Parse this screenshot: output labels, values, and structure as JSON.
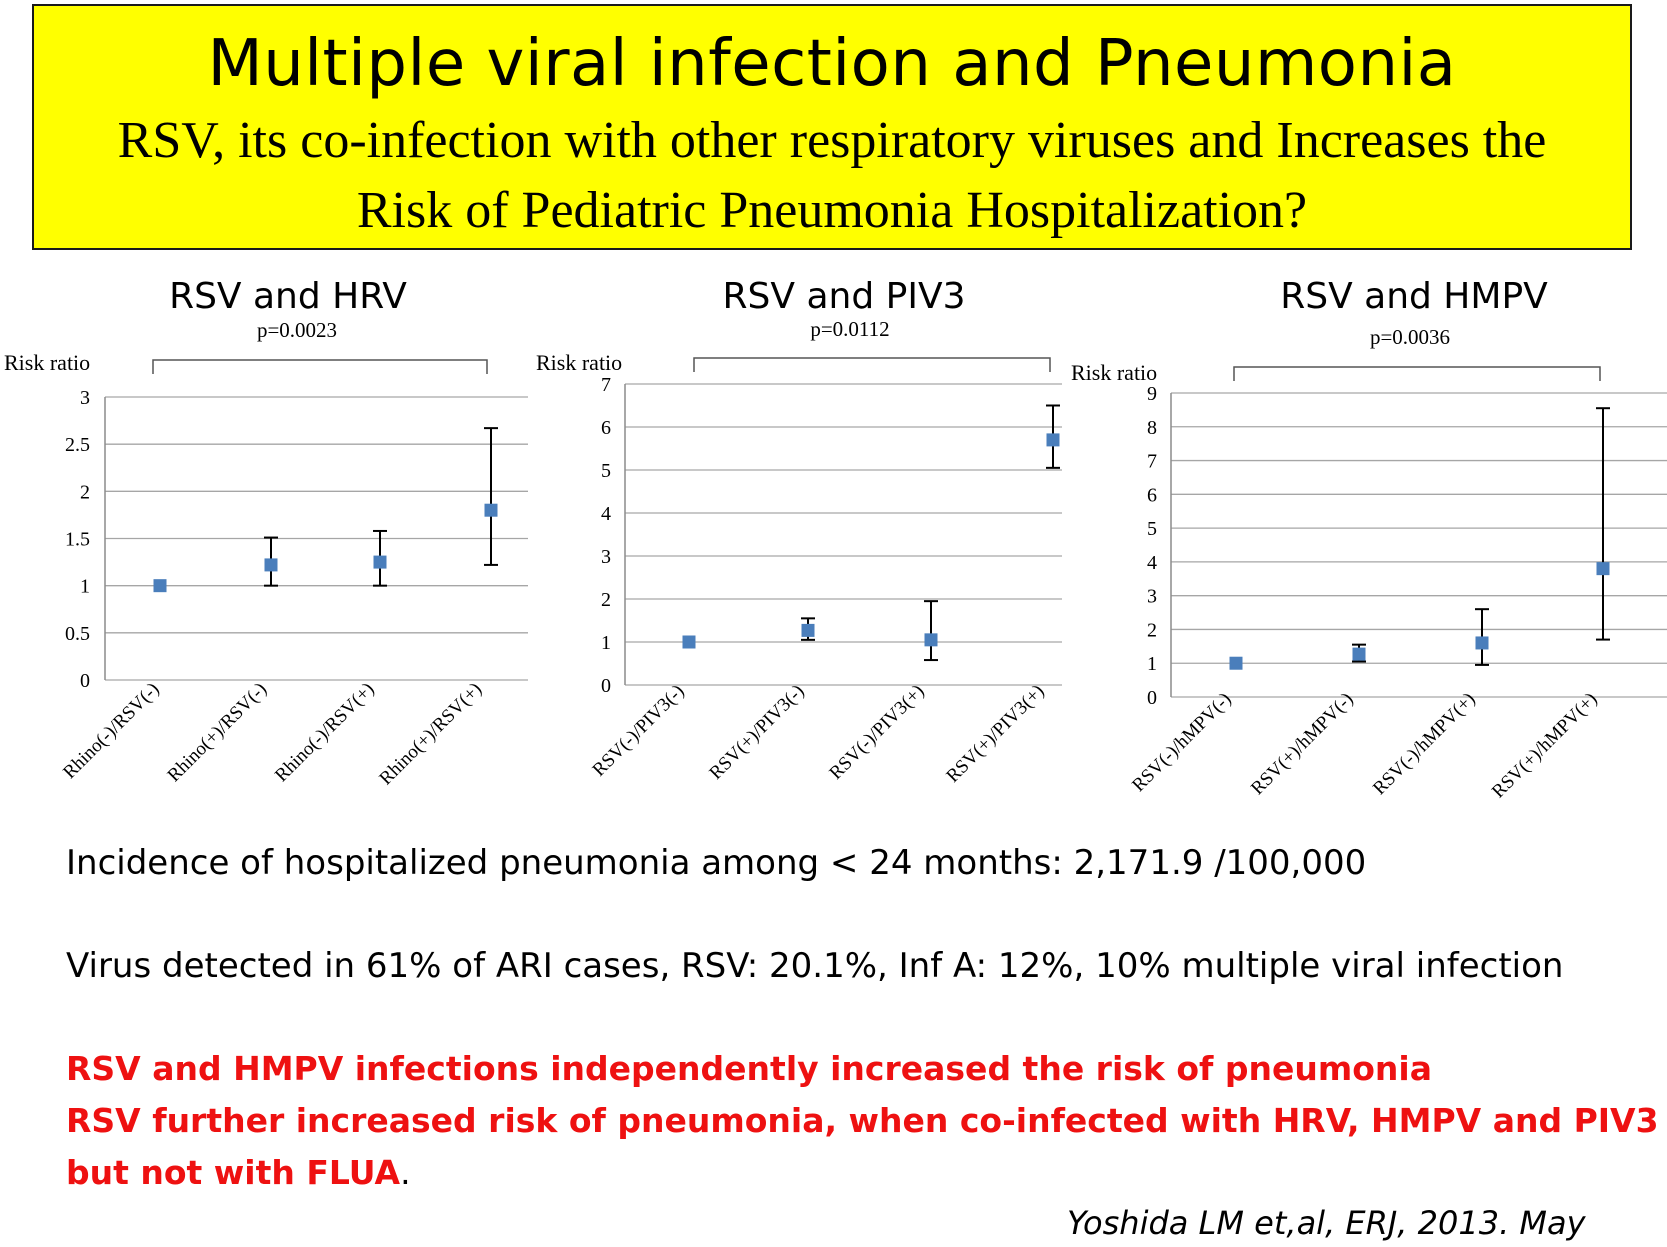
{
  "title": {
    "main": "Multiple viral infection and Pneumonia",
    "sub_line1": "RSV, its co-infection with other respiratory viruses and Increases the",
    "sub_line2": "Risk of Pediatric Pneumonia Hospitalization?"
  },
  "chart_data": [
    {
      "type": "scatter",
      "title": "RSV and HRV",
      "p_value": "p=0.0023",
      "ylabel": "Risk ratio",
      "categories": [
        "Rhino(-)/RSV(-)",
        "Rhino(+)/RSV(-)",
        "Rhino(-)/RSV(+)",
        "Rhino(+)/RSV(+)"
      ],
      "values": [
        1.0,
        1.22,
        1.25,
        1.8
      ],
      "error_low": [
        1.0,
        1.0,
        1.0,
        1.22
      ],
      "error_high": [
        1.0,
        1.51,
        1.58,
        2.67
      ],
      "ylim": [
        0,
        3
      ],
      "yticks": [
        "0",
        "0.5",
        "1",
        "1.5",
        "2",
        "2.5",
        "3"
      ],
      "grid": true,
      "marker_color": "#4a7ebb"
    },
    {
      "type": "scatter",
      "title": "RSV and PIV3",
      "p_value": "p=0.0112",
      "ylabel": "Risk ratio",
      "categories": [
        "RSV(-)/PIV3(-)",
        "RSV(+)/PIV3(-)",
        "RSV(-)/PIV3(+)",
        "RSV(+)/PIV3(+)"
      ],
      "values": [
        1.0,
        1.27,
        1.05,
        5.7
      ],
      "error_low": [
        1.0,
        1.05,
        0.58,
        5.05
      ],
      "error_high": [
        1.0,
        1.55,
        1.95,
        6.5
      ],
      "ylim": [
        0,
        7
      ],
      "yticks": [
        "0",
        "1",
        "2",
        "3",
        "4",
        "5",
        "6",
        "7"
      ],
      "grid": true,
      "marker_color": "#4a7ebb"
    },
    {
      "type": "scatter",
      "title": "RSV and HMPV",
      "p_value": "p=0.0036",
      "ylabel": "Risk ratio",
      "categories": [
        "RSV(-)/hMPV(-)",
        "RSV(+)/hMPV(-)",
        "RSV(-)/hMPV(+)",
        "RSV(+)/hMPV(+)"
      ],
      "values": [
        1.0,
        1.27,
        1.6,
        3.8
      ],
      "error_low": [
        1.0,
        1.05,
        0.95,
        1.7
      ],
      "error_high": [
        1.0,
        1.55,
        2.6,
        8.55
      ],
      "ylim": [
        0,
        9
      ],
      "yticks": [
        "0",
        "1",
        "2",
        "3",
        "4",
        "5",
        "6",
        "7",
        "8",
        "9"
      ],
      "grid": true,
      "marker_color": "#4a7ebb"
    }
  ],
  "body": {
    "line1": "Incidence of hospitalized pneumonia among  < 24 months: 2,171.9 /100,000",
    "line2": "Virus detected in 61% of ARI cases, RSV: 20.1%, Inf A: 12%, 10% multiple viral infection",
    "red1": "RSV and HMPV infections independently increased the risk of pneumonia",
    "red2": "RSV further increased risk of pneumonia, when co-infected with HRV, HMPV and PIV3",
    "red3": "but not with FLUA",
    "red3_end": ".",
    "citation": "Yoshida LM et,al, ERJ, 2013. May"
  }
}
